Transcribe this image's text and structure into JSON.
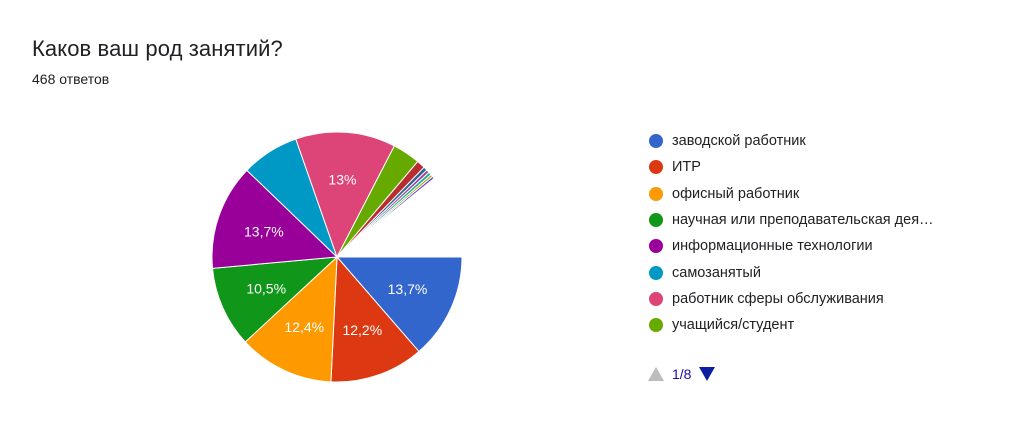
{
  "header": {
    "title": "Каков ваш род занятий?",
    "subtitle": "468 ответов"
  },
  "chart_data": {
    "type": "pie",
    "start_angle_deg": 90,
    "direction": "clockwise",
    "series": [
      {
        "name": "заводской работник",
        "value": 13.7,
        "color": "#3366cc",
        "label": "13,7%"
      },
      {
        "name": "ИТР",
        "value": 12.2,
        "color": "#dc3912",
        "label": "12,2%"
      },
      {
        "name": "офисный работник",
        "value": 12.4,
        "color": "#ff9900",
        "label": "12,4%"
      },
      {
        "name": "научная или преподавательская дея…",
        "value": 10.5,
        "color": "#109618",
        "label": "10,5%"
      },
      {
        "name": "информационные технологии",
        "value": 13.7,
        "color": "#990099",
        "label": "13,7%"
      },
      {
        "name": "самозанятый",
        "value": 7.5,
        "color": "#0099c6",
        "label": ""
      },
      {
        "name": "работник сферы обслуживания",
        "value": 13.0,
        "color": "#dd4477",
        "label": "13%"
      },
      {
        "name": "учащийся/студент",
        "value": 3.6,
        "color": "#66aa00",
        "label": ""
      },
      {
        "name": "",
        "value": 1.1,
        "color": "#b82e2e",
        "label": ""
      },
      {
        "name": "",
        "value": 0.5,
        "color": "#316395",
        "label": ""
      },
      {
        "name": "",
        "value": 0.4,
        "color": "#994499",
        "label": ""
      },
      {
        "name": "",
        "value": 0.4,
        "color": "#22aa99",
        "label": ""
      },
      {
        "name": "",
        "value": 0.3,
        "color": "#aaaa11",
        "label": ""
      },
      {
        "name": "",
        "value": 0.3,
        "color": "#6633cc",
        "label": ""
      },
      {
        "name": "",
        "value": 10.9,
        "color": "#ffffff",
        "label": ""
      }
    ],
    "legend_position": "right"
  },
  "legend": {
    "items": [
      {
        "label": "заводской работник",
        "color": "#3366cc"
      },
      {
        "label": "ИТР",
        "color": "#dc3912"
      },
      {
        "label": "офисный работник",
        "color": "#ff9900"
      },
      {
        "label": "научная или преподавательская дея…",
        "color": "#109618"
      },
      {
        "label": "информационные технологии",
        "color": "#990099"
      },
      {
        "label": "самозанятый",
        "color": "#0099c6"
      },
      {
        "label": "работник сферы обслуживания",
        "color": "#dd4477"
      },
      {
        "label": "учащийся/студент",
        "color": "#66aa00"
      }
    ]
  },
  "pager": {
    "text": "1/8"
  }
}
